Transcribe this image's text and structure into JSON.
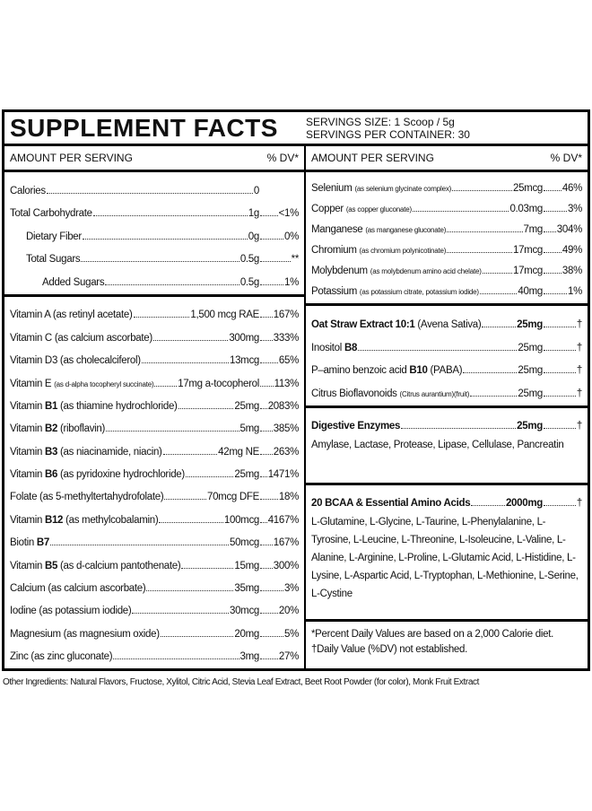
{
  "header": {
    "title": "SUPPLEMENT FACTS",
    "serving_size": "SERVINGS SIZE: 1 Scoop / 5g",
    "servings_per_container": "SERVINGS PER CONTAINER: 30"
  },
  "left": {
    "column_header": {
      "amount": "AMOUNT PER SERVING",
      "dv": "% DV*"
    },
    "sections": [
      {
        "rows": [
          {
            "name": "Calories",
            "amount": "0"
          },
          {
            "name": "Total Carbohydrate",
            "amount": "1g",
            "dv": "<1%"
          },
          {
            "name": "Dietary Fiber",
            "amount": "0g",
            "dv": "0%",
            "indent": 1
          },
          {
            "name": "Total Sugars",
            "amount": "0.5g",
            "dv": "**",
            "indent": 1
          },
          {
            "name": "Added Sugars",
            "amount": "0.5g",
            "dv": "1%",
            "indent": 2
          }
        ]
      },
      {
        "rows": [
          {
            "name": "Vitamin A (as retinyl acetate)",
            "amount": "1,500 mcg RAE",
            "dv": "167%"
          },
          {
            "name": "Vitamin C (as calcium ascorbate)",
            "amount": "300mg",
            "dv": "333%"
          },
          {
            "name": "Vitamin D3 (as cholecalciferol)",
            "amount": "13mcg",
            "dv": "65%"
          },
          {
            "name": [
              {
                "text": "Vitamin E"
              },
              {
                "text": "(as d-alpha tocopheryl succinate)",
                "style": "small"
              }
            ],
            "amount": "17mg a-tocopherol",
            "dv": "113%"
          },
          {
            "name": [
              {
                "text": "Vitamin"
              },
              {
                "text": "B1",
                "style": "bold"
              },
              {
                "text": "(as thiamine hydrochloride)"
              }
            ],
            "amount": "25mg",
            "dv": "2083%"
          },
          {
            "name": [
              {
                "text": "Vitamin"
              },
              {
                "text": "B2",
                "style": "bold"
              },
              {
                "text": "(riboflavin)"
              }
            ],
            "amount": "5mg",
            "dv": "385%"
          },
          {
            "name": [
              {
                "text": "Vitamin"
              },
              {
                "text": "B3",
                "style": "bold"
              },
              {
                "text": "(as niacinamide, niacin)"
              }
            ],
            "amount": "42mg NE",
            "dv": "263%"
          },
          {
            "name": [
              {
                "text": "Vitamin"
              },
              {
                "text": "B6",
                "style": "bold"
              },
              {
                "text": "(as pyridoxine hydrochloride)"
              }
            ],
            "amount": "25mg",
            "dv": "1471%"
          },
          {
            "name": "Folate (as 5-methyltertahydrofolate)",
            "amount": "70mcg DFE",
            "dv": "18%"
          },
          {
            "name": [
              {
                "text": "Vitamin"
              },
              {
                "text": "B12",
                "style": "bold"
              },
              {
                "text": "(as methylcobalamin)"
              }
            ],
            "amount": "100mcg",
            "dv": "4167%"
          },
          {
            "name": [
              {
                "text": "Biotin"
              },
              {
                "text": "B7",
                "style": "bold"
              }
            ],
            "amount": "50mcg",
            "dv": "167%"
          },
          {
            "name": [
              {
                "text": "Vitamin"
              },
              {
                "text": "B5",
                "style": "bold"
              },
              {
                "text": "(as d-calcium pantothenate)"
              }
            ],
            "amount": "15mg",
            "dv": "300%"
          },
          {
            "name": "Calcium (as calcium ascorbate)",
            "amount": "35mg",
            "dv": "3%"
          },
          {
            "name": "Iodine (as potassium iodide)",
            "amount": "30mcg",
            "dv": "20%"
          },
          {
            "name": "Magnesium (as magnesium oxide)",
            "amount": "20mg",
            "dv": "5%"
          },
          {
            "name": "Zinc (as zinc gluconate)",
            "amount": "3mg",
            "dv": "27%"
          }
        ]
      }
    ]
  },
  "right": {
    "column_header": {
      "amount": "AMOUNT PER SERVING",
      "dv": "% DV*"
    },
    "sections": [
      {
        "rows": [
          {
            "name": [
              {
                "text": "Selenium"
              },
              {
                "text": "(as selenium glycinate complex)",
                "style": "small"
              }
            ],
            "amount": "25mcg",
            "dv": "46%"
          },
          {
            "name": [
              {
                "text": "Copper"
              },
              {
                "text": "(as copper gluconate)",
                "style": "small"
              }
            ],
            "amount": "0.03mg",
            "dv": "3%"
          },
          {
            "name": [
              {
                "text": "Manganese"
              },
              {
                "text": "(as manganese gluconate)",
                "style": "small"
              }
            ],
            "amount": "7mg",
            "dv": "304%"
          },
          {
            "name": [
              {
                "text": "Chromium"
              },
              {
                "text": "(as chromium polynicotinate)",
                "style": "small"
              }
            ],
            "amount": "17mcg",
            "dv": "49%"
          },
          {
            "name": [
              {
                "text": "Molybdenum"
              },
              {
                "text": "(as molybdenum amino acid chelate)",
                "style": "small"
              }
            ],
            "amount": "17mcg",
            "dv": "38%"
          },
          {
            "name": [
              {
                "text": "Potassium"
              },
              {
                "text": "(as potassium citrate, potassium iodide)",
                "style": "small"
              }
            ],
            "amount": "40mg",
            "dv": "1%"
          }
        ]
      },
      {
        "rows": [
          {
            "name": [
              {
                "text": "Oat Straw Extract 10:1",
                "style": "bold"
              },
              {
                "text": "(Avena Sativa)"
              }
            ],
            "amount": "25mg",
            "amount_style": "bold",
            "dv": "†"
          },
          {
            "name": [
              {
                "text": "Inositol"
              },
              {
                "text": "B8",
                "style": "bold"
              }
            ],
            "amount": "25mg",
            "dv": "†"
          },
          {
            "name": [
              {
                "text": "P–amino benzoic acid"
              },
              {
                "text": "B10",
                "style": "bold"
              },
              {
                "text": "(PABA)"
              }
            ],
            "amount": "25mg",
            "dv": "†"
          },
          {
            "name": [
              {
                "text": "Citrus Bioflavonoids"
              },
              {
                "text": "(Citrus aurantium)(fruit)",
                "style": "small"
              }
            ],
            "amount": "25mg",
            "dv": "†"
          }
        ]
      },
      {
        "rows": [
          {
            "name": [
              {
                "text": "Digestive Enzymes",
                "style": "bold"
              }
            ],
            "amount": "25mg",
            "amount_style": "bold",
            "dv": "†"
          }
        ],
        "description": "Amylase, Lactase, Protease, Lipase, Cellulase, Pancreatin"
      },
      {
        "rows": [
          {
            "name": [
              {
                "text": "20 BCAA & Essential Amino Acids",
                "style": "bold"
              }
            ],
            "amount": "2000mg",
            "amount_style": "bold",
            "dv": "†"
          }
        ],
        "description": "L-Glutamine, L-Glycine, L-Taurine, L-Phenylalanine, L-Tyrosine, L-Leucine, L-Threonine, L-Isoleucine, L-Valine, L-Alanine, L-Arginine, L-Proline, L-Glutamic Acid, L-Histidine, L-Lysine, L-Aspartic Acid, L-Tryptophan, L-Methionine, L-Serine, L-Cystine"
      }
    ],
    "footnotes": [
      "*Percent Daily Values are based on a 2,000 Calorie diet.",
      "†Daily Value (%DV) not established."
    ]
  },
  "other_ingredients": "Other Ingredients: Natural Flavors, Fructose, Xylitol, Citric Acid, Stevia Leaf Extract, Beet Root Powder (for color), Monk Fruit Extract"
}
